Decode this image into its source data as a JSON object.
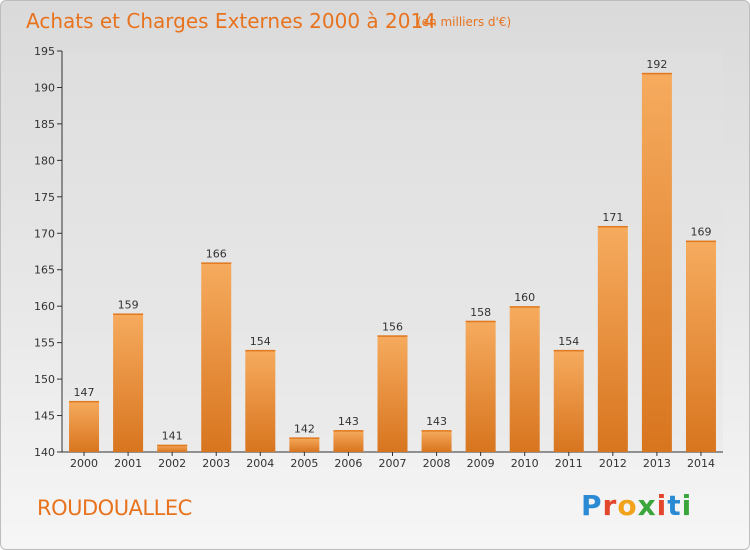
{
  "header": {
    "title": "Achats et Charges Externes 2000 à 2014",
    "subtitle": "(en milliers d'€)"
  },
  "footer": {
    "place": "ROUDOUALLEC",
    "logo_text": "Proxiti"
  },
  "colors": {
    "title": "#e8731f",
    "bar_light": "#f6ab5e",
    "bar_dark": "#d8751f",
    "axis": "#333333",
    "grid_bg": "#e2e2e2"
  },
  "chart_data": {
    "type": "bar",
    "categories": [
      "2000",
      "2001",
      "2002",
      "2003",
      "2004",
      "2005",
      "2006",
      "2007",
      "2008",
      "2009",
      "2010",
      "2011",
      "2012",
      "2013",
      "2014"
    ],
    "values": [
      147,
      159,
      141,
      166,
      154,
      142,
      143,
      156,
      143,
      158,
      160,
      154,
      171,
      192,
      169
    ],
    "ylim": [
      140,
      195
    ],
    "yticks": [
      140,
      145,
      150,
      155,
      160,
      165,
      170,
      175,
      180,
      185,
      190,
      195
    ],
    "grid": false,
    "legend": "none"
  }
}
